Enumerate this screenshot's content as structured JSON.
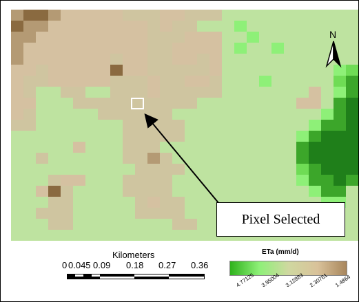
{
  "map": {
    "palette": {
      "D": "#8a6a40",
      "M": "#b49a74",
      "T": "#d5c1a1",
      "L": "#cfc5a0",
      "B": "#bee3a0",
      "G": "#8ef078",
      "g": "#6fdc55",
      "K": "#3ca62a",
      "k": "#1f7f1a"
    },
    "grid": [
      "MDDMTTTTTLLLTTLLLBBBBBBBBBBB",
      "DMMTTTTTTTTLTLLBBBGBBBBBBBBB",
      "MMTTTTTTTTTLLLTTTBBGBBBBBBBB",
      "MTTTTTTTTTTLLTTTTBGBBGBBBBBB",
      "MTTTTTTTLTTLLTTLTBBBBBBBBBBB",
      "TTLTTTTTDTTLLLLLTBBBBBBBBBGg",
      "TLLTTTTTLLLTLLTTLBBBGBBBBBgK",
      "TLBBLLBBLLLTLLLLLBBBBBBBTBGK",
      "TTBBBLLLLLLLLLLBBBBBBBBTTBKk",
      "TLBBBBBLLLLLLBBBBBBBBBBBBGKk",
      "LLBBBBBBBLLLLLBBBBBBBBBBGKKk",
      "BBBBBBBBBLLLLLBBBBBBBBBGKkkk",
      "BBBBBTBBBLLLBBBBBBBBBBBKkkkk",
      "BBLBBBBBBLLMLBBBBBBBBBBKkkkk",
      "BBBBBBBBBBLLLLBBBBBBBBBgKkkk",
      "BBBLTTBBBLLLLBBBBBBBBBBGKKkK",
      "BBTDLBBBBLLLLBBBBBBBBBBBGKKB",
      "BBBLLBBBBBLTLLBBBBBBBBBBBGGB",
      "BBLLLBBBBBLLLLBBBBBBBBBBBBBB",
      "BBBLLBBBBBBBBLLBBBBBBBBBBBBB",
      "BBBBBBBBBBBBBBBBBBBBBBBBBBBB"
    ],
    "callout_label": "Pixel Selected",
    "north_label": "N"
  },
  "scale": {
    "title": "Kilometers",
    "ticks": [
      "0",
      "0.045",
      "0.09",
      "0.18",
      "0.27",
      "0.36"
    ]
  },
  "legend": {
    "title": "ETa (mm/d)",
    "ramp_colors": [
      "#2fb21c",
      "#8ef078",
      "#cfd8a0",
      "#d9c29a",
      "#a8865c"
    ],
    "labels": [
      "4.77125",
      "3.95004",
      "3.12883",
      "2.30761",
      "1.4864"
    ]
  }
}
